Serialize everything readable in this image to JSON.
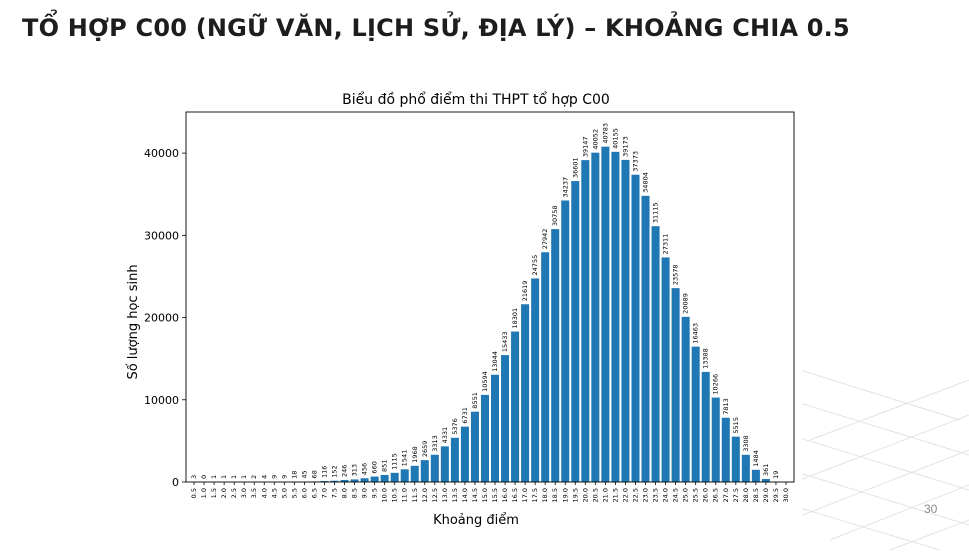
{
  "slide": {
    "title": "TỔ HỢP C00 (NGỮ VĂN, LỊCH SỬ, ĐỊA LÝ) – KHOẢNG CHIA 0.5",
    "page_number": "30"
  },
  "colors": {
    "bar": "#1f77b4",
    "text": "#000000",
    "title": "#1d1d1d"
  },
  "chart_data": {
    "type": "bar",
    "title": "Biểu đồ phổ điểm thi THPT tổ hợp C00",
    "xlabel": "Khoảng điểm",
    "ylabel": "Số lượng học sinh",
    "ylim": [
      0,
      45000
    ],
    "yticks": [
      0,
      10000,
      20000,
      30000,
      40000
    ],
    "grid": false,
    "categories": [
      "0.5",
      "1.0",
      "1.5",
      "2.0",
      "2.5",
      "3.0",
      "3.5",
      "4.0",
      "4.5",
      "5.0",
      "5.5",
      "6.0",
      "6.5",
      "7.0",
      "7.5",
      "8.0",
      "8.5",
      "9.0",
      "9.5",
      "10.0",
      "10.5",
      "11.0",
      "11.5",
      "12.0",
      "12.5",
      "13.0",
      "13.5",
      "14.0",
      "14.5",
      "15.0",
      "15.5",
      "16.0",
      "16.5",
      "17.0",
      "17.5",
      "18.0",
      "18.5",
      "19.0",
      "19.5",
      "20.0",
      "20.5",
      "21.0",
      "21.5",
      "22.0",
      "22.5",
      "23.0",
      "23.5",
      "24.0",
      "24.5",
      "25.0",
      "25.5",
      "26.0",
      "26.5",
      "27.0",
      "27.5",
      "28.0",
      "28.5",
      "29.0",
      "29.5",
      "30.0"
    ],
    "values": [
      3,
      0,
      1,
      1,
      1,
      1,
      2,
      4,
      9,
      9,
      18,
      45,
      68,
      116,
      152,
      246,
      313,
      456,
      660,
      851,
      1115,
      1541,
      1968,
      2659,
      3313,
      4331,
      5376,
      6731,
      8551,
      10594,
      13044,
      15433,
      18301,
      21619,
      24755,
      27942,
      30758,
      34237,
      36601,
      39147,
      40052,
      40783,
      40155,
      39173,
      37373,
      34804,
      31115,
      27311,
      23578,
      20089,
      16463,
      13388,
      10266,
      7813,
      5515,
      3308,
      1484,
      361,
      19,
      0
    ],
    "value_labels": [
      "3",
      "0",
      "1",
      "1",
      "1",
      "1",
      "2",
      "4",
      "9",
      "9",
      "18",
      "45",
      "68",
      "116",
      "152",
      "246",
      "313",
      "456",
      "660",
      "851",
      "1115",
      "1541",
      "1968",
      "2659",
      "3313",
      "4331",
      "5376",
      "6731",
      "8551",
      "10594",
      "13044",
      "15433",
      "18301",
      "21619",
      "24755",
      "27942",
      "30758",
      "34237",
      "36601",
      "39147",
      "40052",
      "40783",
      "40155",
      "39173",
      "37373",
      "34804",
      "31115",
      "27311",
      "23578",
      "20089",
      "16463",
      "13388",
      "10266",
      "7813",
      "5515",
      "3308",
      "1484",
      "361",
      "19",
      ""
    ]
  }
}
